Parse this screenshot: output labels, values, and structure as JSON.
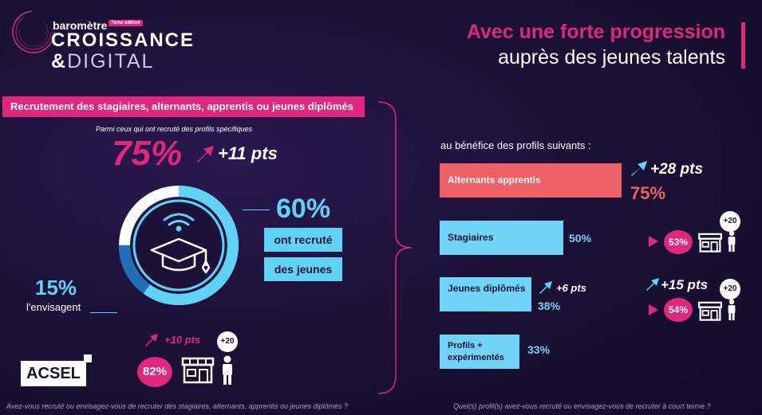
{
  "logo": {
    "line1": "baromètre",
    "edition": "7ème édition",
    "line2": "CROISSANCE",
    "amp": "&",
    "line3": "DIGITAL"
  },
  "header": {
    "title_highlight": "Avec une forte progression",
    "title_rest": "auprès des jeunes talents"
  },
  "left": {
    "banner": "Recrutement des stagiaires, alternants, apprentis ou jeunes diplômés",
    "note": "Parmi ceux qui ont recruté des profils spécifiques",
    "big_pct": "75%",
    "big_delta": "+11 pts",
    "recruited_pct": "60%",
    "recruited_label1": "ont recruté",
    "recruited_label2": "des jeunes",
    "considering_pct": "15%",
    "considering_label": "l'envisagent",
    "small_delta": "+10 pts",
    "small_pct": "82%",
    "plus20": "+20",
    "donut": {
      "recruited": 60,
      "considering": 15
    }
  },
  "brand": "ACSEL",
  "right": {
    "intro": "au bénéfice des profils suivants :",
    "bars": [
      {
        "label": "Alternants apprentis",
        "value": "75%",
        "delta": "+28 pts"
      },
      {
        "label": "Stagiaires",
        "value": "50%",
        "small_pct": "53%",
        "plus20": "+20"
      },
      {
        "label": "Jeunes diplômés",
        "value": "38%",
        "delta": "+6 pts",
        "small_pct": "54%",
        "small_delta": "+15 pts",
        "plus20": "+20"
      },
      {
        "label": "Profils + expérimentés",
        "value": "33%"
      }
    ]
  },
  "questions": {
    "left": "Avez-vous recruté ou envisagez-vous de recruter des stagiaires, alternants, apprentis ou jeunes diplômés ?",
    "right": "Quel(s) profil(s) avez-vous recruté ou envisagez-vous de recruter à court terme ?"
  },
  "colors": {
    "pink": "#e0267d",
    "blue": "#5fd3f5",
    "coral": "#ee5f66",
    "bg": "#1c1238"
  }
}
